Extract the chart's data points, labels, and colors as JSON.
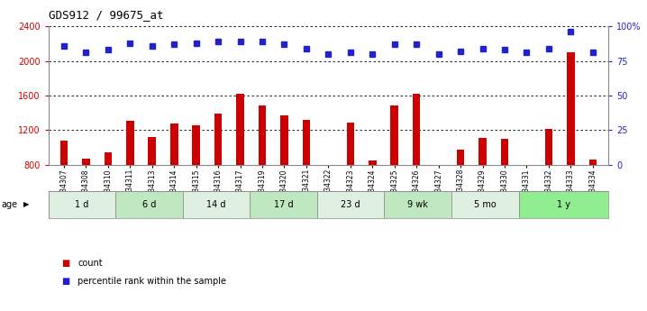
{
  "title": "GDS912 / 99675_at",
  "samples": [
    "GSM34307",
    "GSM34308",
    "GSM34310",
    "GSM34311",
    "GSM34313",
    "GSM34314",
    "GSM34315",
    "GSM34316",
    "GSM34317",
    "GSM34319",
    "GSM34320",
    "GSM34321",
    "GSM34322",
    "GSM34323",
    "GSM34324",
    "GSM34325",
    "GSM34326",
    "GSM34327",
    "GSM34328",
    "GSM34329",
    "GSM34330",
    "GSM34331",
    "GSM34332",
    "GSM34333",
    "GSM34334"
  ],
  "counts": [
    1080,
    870,
    940,
    1310,
    1120,
    1280,
    1260,
    1390,
    1620,
    1490,
    1370,
    1320,
    790,
    1290,
    850,
    1490,
    1620,
    760,
    980,
    1110,
    1100,
    790,
    1220,
    2100,
    860
  ],
  "percentiles": [
    86,
    81,
    83,
    88,
    86,
    87,
    88,
    89,
    89,
    89,
    87,
    84,
    80,
    81,
    80,
    87,
    87,
    80,
    82,
    84,
    83,
    81,
    84,
    96,
    81
  ],
  "groups": [
    {
      "label": "1 d",
      "start": 0,
      "end": 3,
      "color": "#e0f0e0"
    },
    {
      "label": "6 d",
      "start": 3,
      "end": 6,
      "color": "#c0e8c0"
    },
    {
      "label": "14 d",
      "start": 6,
      "end": 9,
      "color": "#e0f0e0"
    },
    {
      "label": "17 d",
      "start": 9,
      "end": 12,
      "color": "#c0e8c0"
    },
    {
      "label": "23 d",
      "start": 12,
      "end": 15,
      "color": "#e0f0e0"
    },
    {
      "label": "9 wk",
      "start": 15,
      "end": 18,
      "color": "#c0e8c0"
    },
    {
      "label": "5 mo",
      "start": 18,
      "end": 21,
      "color": "#e0f0e0"
    },
    {
      "label": "1 y",
      "start": 21,
      "end": 25,
      "color": "#90ee90"
    }
  ],
  "ylim_left": [
    800,
    2400
  ],
  "ylim_right": [
    0,
    100
  ],
  "yticks_left": [
    800,
    1200,
    1600,
    2000,
    2400
  ],
  "yticks_right": [
    0,
    25,
    50,
    75,
    100
  ],
  "bar_color": "#cc0000",
  "dot_color": "#2222cc",
  "bar_width": 0.35,
  "legend_count_color": "#cc0000",
  "legend_pct_color": "#2222cc"
}
